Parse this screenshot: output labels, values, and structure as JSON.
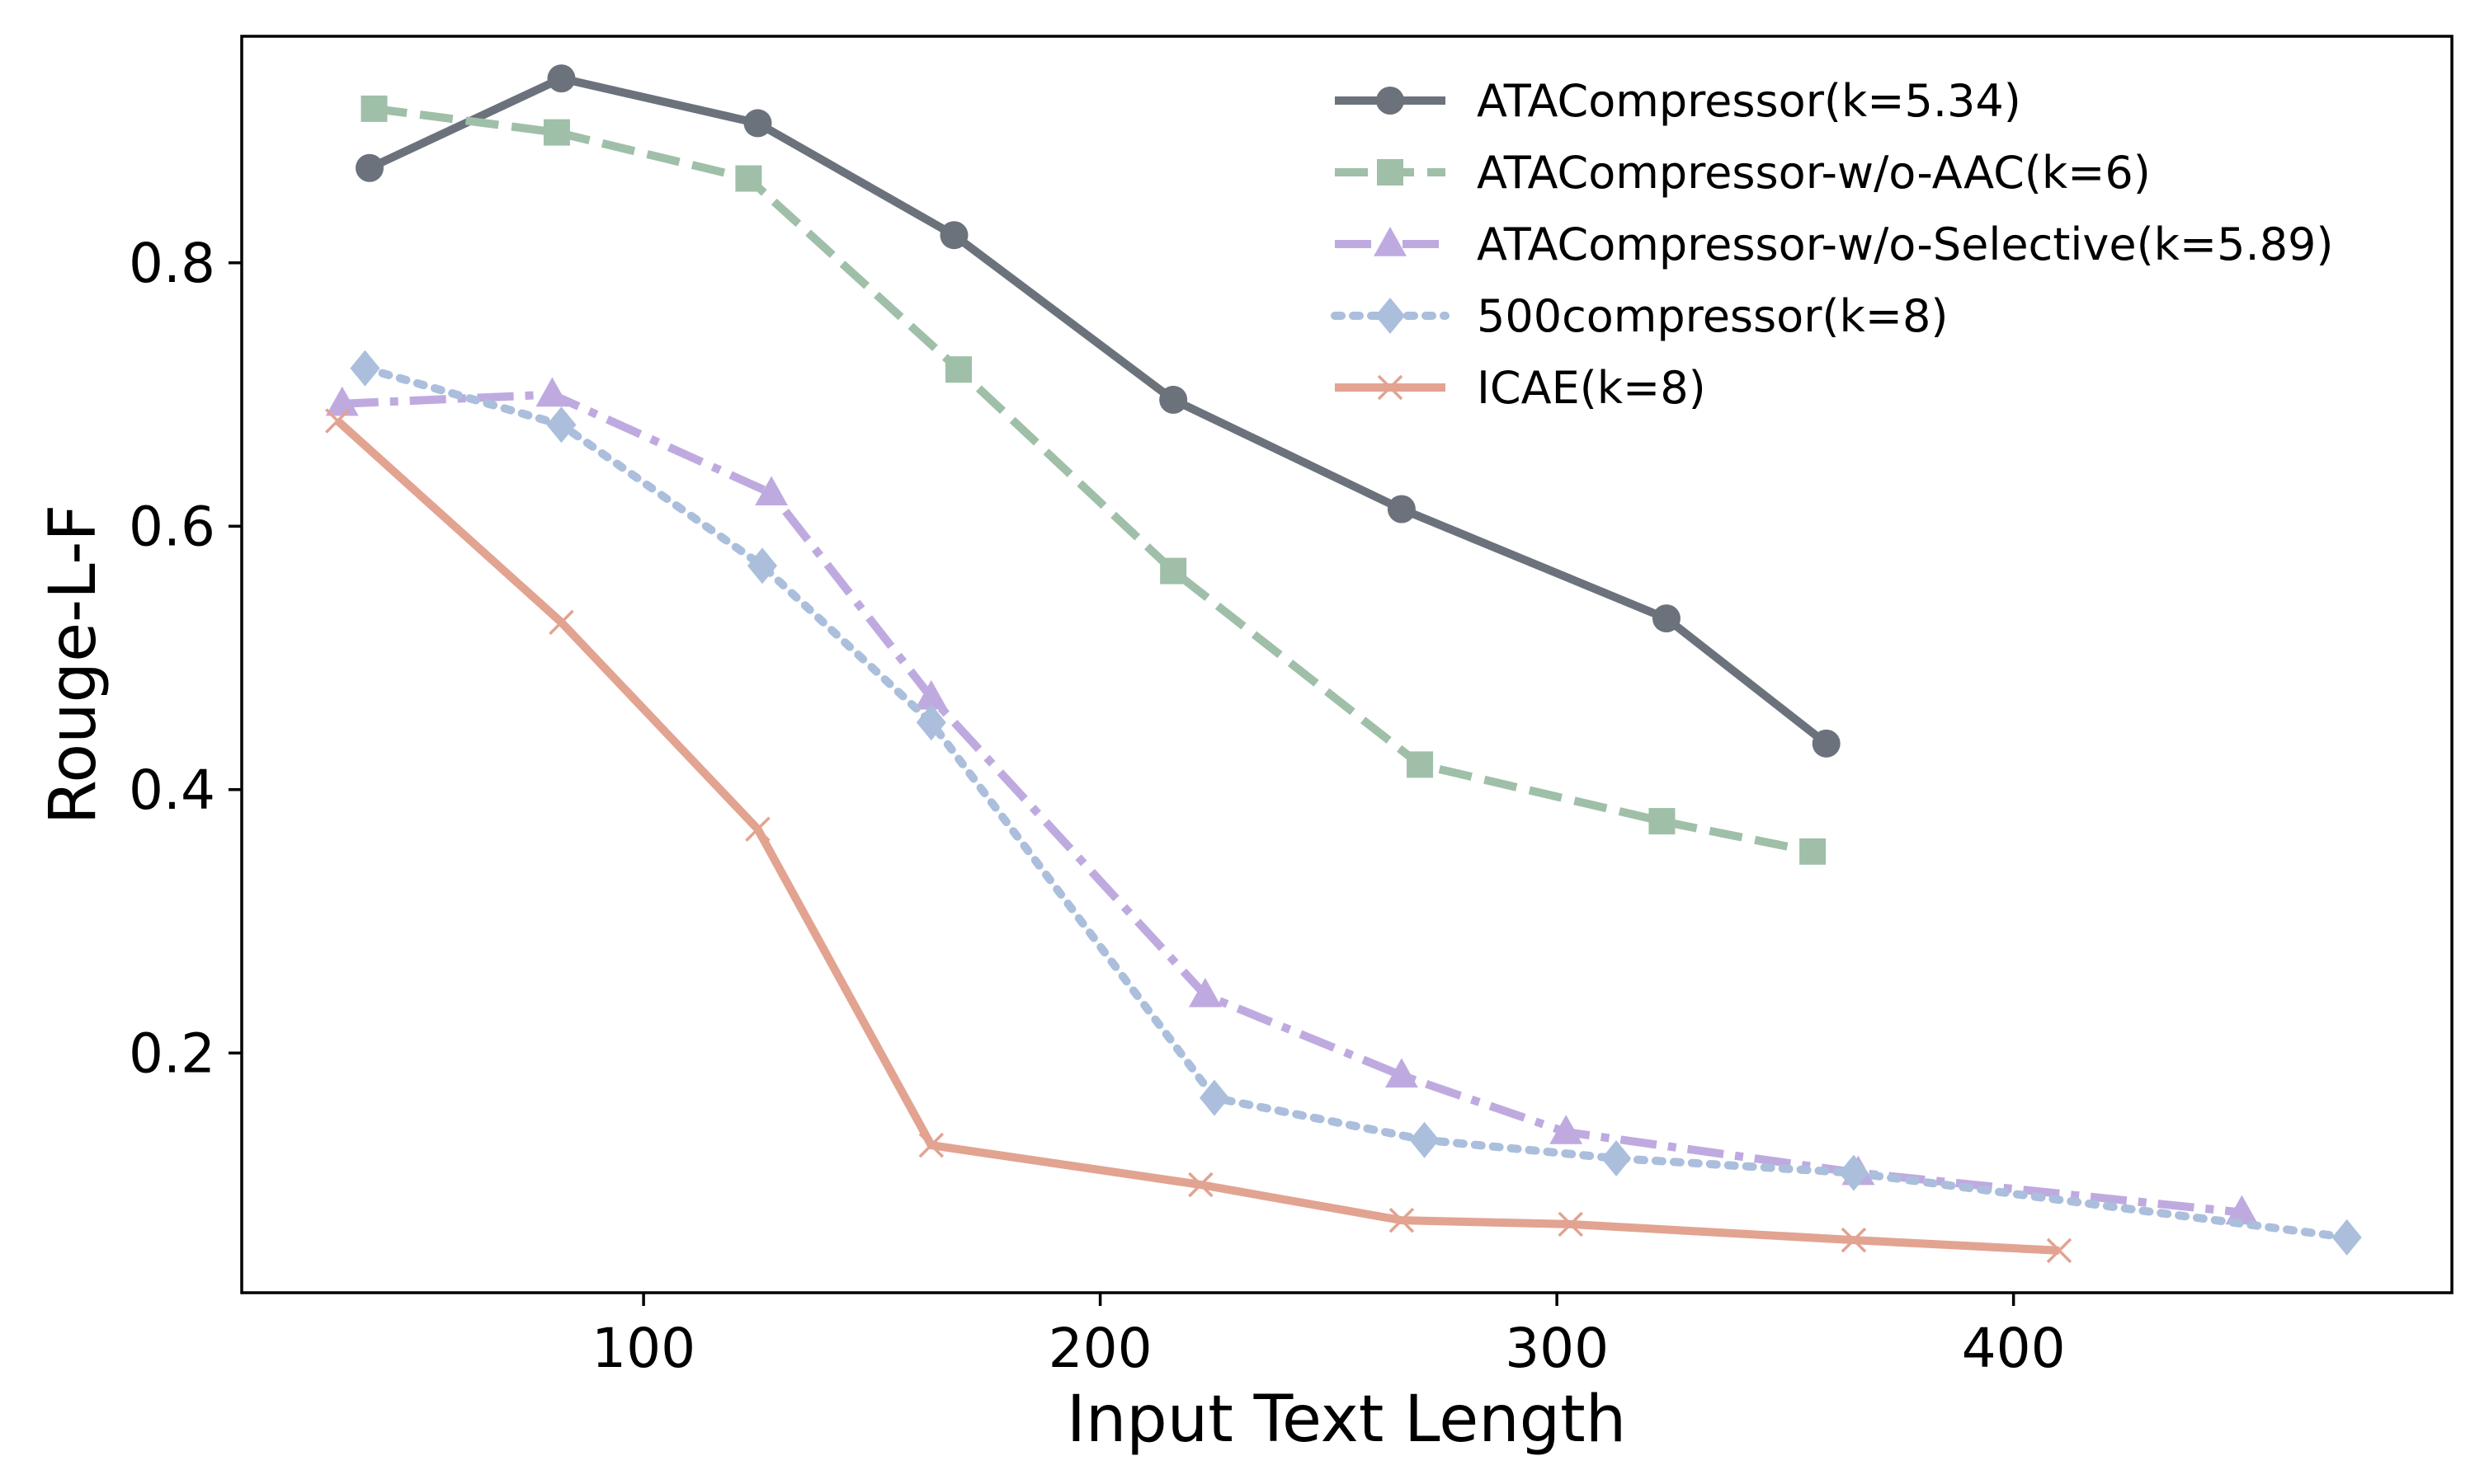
{
  "chart_data": {
    "type": "line",
    "title": "",
    "xlabel": "Input Text Length",
    "ylabel": "Rouge-L-F",
    "xlim": [
      12,
      496
    ],
    "ylim": [
      0.018,
      0.972
    ],
    "xticks": [
      100,
      200,
      300,
      400
    ],
    "yticks": [
      0.2,
      0.4,
      0.6,
      0.8
    ],
    "xtick_labels": [
      "100",
      "200",
      "300",
      "400"
    ],
    "ytick_labels": [
      "0.2",
      "0.4",
      "0.6",
      "0.8"
    ],
    "grid": false,
    "legend_position": "top-right",
    "series": [
      {
        "name": "ATACompressor(k=5.34)",
        "color": "#6b727c",
        "line_style": "solid",
        "marker": "circle",
        "x": [
          40,
          82,
          125,
          168,
          216,
          266,
          324,
          359
        ],
        "y": [
          0.872,
          0.94,
          0.906,
          0.821,
          0.696,
          0.613,
          0.53,
          0.435
        ]
      },
      {
        "name": "ATACompressor-w/o-AAC(k=6)",
        "color": "#9fbfa8",
        "line_style": "dashed",
        "marker": "square",
        "x": [
          41,
          81,
          123,
          169,
          216,
          270,
          323,
          356
        ],
        "y": [
          0.917,
          0.899,
          0.864,
          0.719,
          0.566,
          0.419,
          0.376,
          0.353
        ]
      },
      {
        "name": "ATACompressor-w/o-Selective(k=5.89)",
        "color": "#bfaae0",
        "line_style": "dashdot",
        "marker": "triangle",
        "x": [
          34,
          80,
          128,
          163,
          223,
          266,
          302,
          366,
          450
        ],
        "y": [
          0.693,
          0.7,
          0.625,
          0.47,
          0.244,
          0.183,
          0.14,
          0.109,
          0.079
        ]
      },
      {
        "name": "500compressor(k=8)",
        "color": "#abbfdc",
        "line_style": "dotted",
        "marker": "diamond",
        "x": [
          39,
          82,
          126,
          163,
          225,
          271,
          313,
          365,
          473
        ],
        "y": [
          0.72,
          0.677,
          0.57,
          0.451,
          0.166,
          0.134,
          0.12,
          0.109,
          0.06
        ]
      },
      {
        "name": "ICAE(k=8)",
        "color": "#e2a391",
        "line_style": "solid",
        "marker": "x",
        "x": [
          33,
          82,
          125,
          163,
          222,
          266,
          303,
          365,
          410
        ],
        "y": [
          0.68,
          0.527,
          0.37,
          0.13,
          0.1,
          0.073,
          0.07,
          0.058,
          0.05
        ]
      }
    ]
  }
}
